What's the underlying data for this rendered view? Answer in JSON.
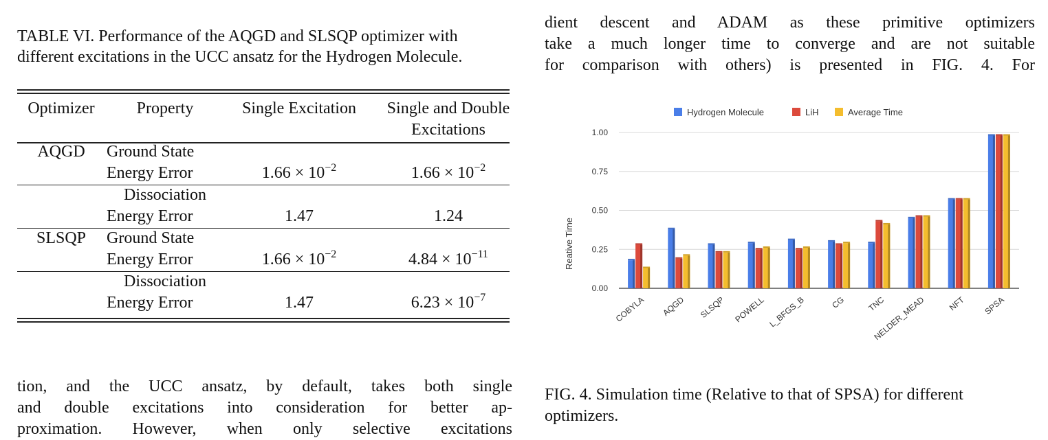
{
  "table": {
    "caption": "TABLE VI. Performance of the AQGD and SLSQP optimizer with different excitations in the UCC ansatz for the Hydrogen Molecule.",
    "headers": {
      "optimizer": "Optimizer",
      "property": "Property",
      "single": "Single Excitation",
      "double_line1": "Single and Double",
      "double_line2": "Excitations"
    },
    "rows": [
      {
        "optimizer": "AQGD",
        "prop1": "Ground State",
        "prop2": "Energy Error",
        "single": "1.66 × 10",
        "single_exp": "−2",
        "double": "1.66 × 10",
        "double_exp": "−2"
      },
      {
        "optimizer": "",
        "prop1": "Dissociation",
        "prop2": "Energy Error",
        "single": "1.47",
        "single_exp": "",
        "double": "1.24",
        "double_exp": ""
      },
      {
        "optimizer": "SLSQP",
        "prop1": "Ground State",
        "prop2": "Energy Error",
        "single": "1.66 × 10",
        "single_exp": "−2",
        "double": "4.84 × 10",
        "double_exp": "−11"
      },
      {
        "optimizer": "",
        "prop1": "Dissociation",
        "prop2": "Energy Error",
        "single": "1.47",
        "single_exp": "",
        "double": "6.23 × 10",
        "double_exp": "−7"
      }
    ]
  },
  "left_paragraph": {
    "line1": "tion, and the UCC ansatz, by default, takes both single",
    "line2": "and double excitations into consideration for better ap-",
    "line3": "proximation. However, when only selective excitations"
  },
  "right_paragraph": {
    "line1": "dient descent and ADAM as these primitive optimizers",
    "line2": "take a much longer time to converge and are not suitable",
    "line3": "for comparison with others) is presented in FIG. 4. For"
  },
  "figure_caption": "FIG. 4. Simulation time (Relative to that of SPSA) for different optimizers.",
  "chart_data": {
    "type": "bar",
    "categories": [
      "COBYLA",
      "AQGD",
      "SLSQP",
      "POWELL",
      "L_BFGS_B",
      "CG",
      "TNC",
      "NELDER_MEAD",
      "NFT",
      "SPSA"
    ],
    "series": [
      {
        "name": "Hydrogen Molecule",
        "color": "#4a7ee8",
        "values": [
          0.18,
          0.38,
          0.28,
          0.29,
          0.31,
          0.3,
          0.29,
          0.45,
          0.57,
          0.98
        ]
      },
      {
        "name": "LiH",
        "color": "#dc4a3c",
        "values": [
          0.28,
          0.19,
          0.23,
          0.25,
          0.25,
          0.28,
          0.43,
          0.46,
          0.57,
          0.98
        ]
      },
      {
        "name": "Average Time",
        "color": "#f4bd2e",
        "values": [
          0.13,
          0.21,
          0.23,
          0.26,
          0.26,
          0.29,
          0.41,
          0.46,
          0.57,
          0.98
        ]
      }
    ],
    "ylabel": "Reative Time",
    "xlabel": "",
    "ylim": [
      0,
      1.0
    ],
    "yticks": [
      "0.00",
      "0.25",
      "0.50",
      "0.75",
      "1.00"
    ],
    "grid": true,
    "legend": "top"
  }
}
